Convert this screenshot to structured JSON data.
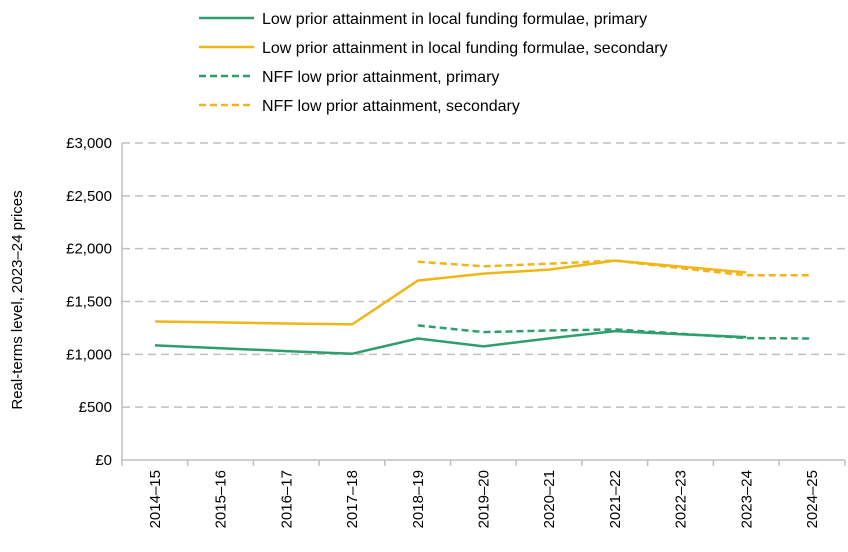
{
  "chart_data": {
    "type": "line",
    "title": "",
    "xlabel": "",
    "ylabel": "Real-terms level, 2023–24 prices",
    "categories": [
      "2014–15",
      "2015–16",
      "2016–17",
      "2017–18",
      "2018–19",
      "2019–20",
      "2020–21",
      "2021–22",
      "2022–23",
      "2023–24",
      "2024–25"
    ],
    "ylim": [
      0,
      3000
    ],
    "yticks": [
      0,
      500,
      1000,
      1500,
      2000,
      2500,
      3000
    ],
    "ytick_labels": [
      "£0",
      "£500",
      "£1,000",
      "£1,500",
      "£2,000",
      "£2,500",
      "£3,000"
    ],
    "grid": true,
    "legend_position": "top",
    "series": [
      {
        "name": "Low prior attainment in local funding formulae, primary",
        "color": "#2e9e6e",
        "dash": false,
        "values": [
          1085,
          1058,
          1031,
          1005,
          1150,
          1075,
          1151,
          1220,
          1190,
          1163,
          null
        ]
      },
      {
        "name": "Low prior attainment in local funding formulae, secondary",
        "color": "#f2b516",
        "dash": false,
        "values": [
          1311,
          1302,
          1292,
          1283,
          1698,
          1764,
          1802,
          1887,
          1830,
          1774,
          null
        ]
      },
      {
        "name": "NFF low prior attainment, primary",
        "color": "#2e9e6e",
        "dash": true,
        "values": [
          null,
          null,
          null,
          null,
          1274,
          1210,
          1226,
          1236,
          1195,
          1154,
          1150
        ]
      },
      {
        "name": "NFF low prior attainment, secondary",
        "color": "#f2b516",
        "dash": true,
        "values": [
          null,
          null,
          null,
          null,
          1877,
          1833,
          1858,
          1887,
          1815,
          1748,
          1748
        ]
      }
    ]
  }
}
